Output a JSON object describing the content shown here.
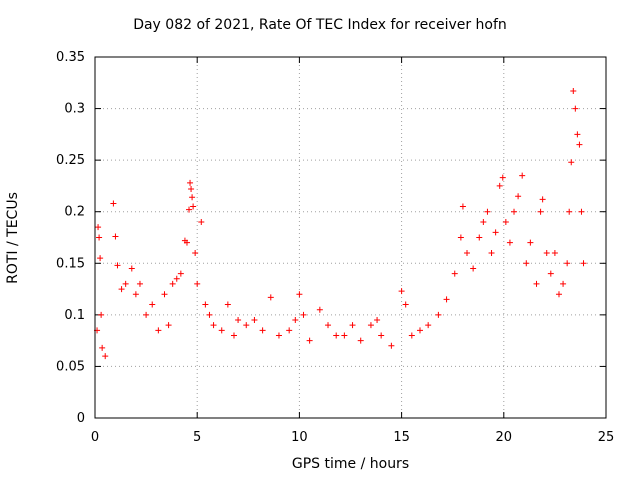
{
  "chart_data": {
    "type": "scatter",
    "title": "Day 082 of 2021, Rate Of TEC Index for receiver hofn",
    "xlabel": "GPS time / hours",
    "ylabel": "ROTI / TECUs",
    "xlim": [
      0,
      25
    ],
    "ylim": [
      0,
      0.35
    ],
    "x_ticks": [
      "0",
      "5",
      "10",
      "15",
      "20",
      "25"
    ],
    "y_ticks": [
      "0",
      "0.05",
      "0.1",
      "0.15",
      "0.2",
      "0.25",
      "0.3",
      "0.35"
    ],
    "grid": true,
    "marker": "+",
    "color": "#ff0000",
    "series": [
      {
        "points": [
          [
            0.1,
            0.085
          ],
          [
            0.15,
            0.185
          ],
          [
            0.2,
            0.175
          ],
          [
            0.25,
            0.155
          ],
          [
            0.3,
            0.1
          ],
          [
            0.35,
            0.068
          ],
          [
            0.5,
            0.06
          ],
          [
            0.9,
            0.208
          ],
          [
            1.0,
            0.176
          ],
          [
            1.1,
            0.148
          ],
          [
            1.3,
            0.125
          ],
          [
            1.5,
            0.13
          ],
          [
            1.8,
            0.145
          ],
          [
            2.0,
            0.12
          ],
          [
            2.2,
            0.13
          ],
          [
            2.5,
            0.1
          ],
          [
            2.8,
            0.11
          ],
          [
            3.1,
            0.085
          ],
          [
            3.4,
            0.12
          ],
          [
            3.6,
            0.09
          ],
          [
            3.8,
            0.13
          ],
          [
            4.0,
            0.135
          ],
          [
            4.2,
            0.14
          ],
          [
            4.4,
            0.172
          ],
          [
            4.5,
            0.17
          ],
          [
            4.6,
            0.202
          ],
          [
            4.65,
            0.228
          ],
          [
            4.7,
            0.222
          ],
          [
            4.75,
            0.214
          ],
          [
            4.8,
            0.205
          ],
          [
            4.9,
            0.16
          ],
          [
            5.0,
            0.13
          ],
          [
            5.2,
            0.19
          ],
          [
            5.4,
            0.11
          ],
          [
            5.6,
            0.1
          ],
          [
            5.8,
            0.09
          ],
          [
            6.2,
            0.085
          ],
          [
            6.5,
            0.11
          ],
          [
            6.8,
            0.08
          ],
          [
            7.0,
            0.095
          ],
          [
            7.4,
            0.09
          ],
          [
            7.8,
            0.095
          ],
          [
            8.2,
            0.085
          ],
          [
            8.6,
            0.117
          ],
          [
            9.0,
            0.08
          ],
          [
            9.5,
            0.085
          ],
          [
            9.8,
            0.095
          ],
          [
            10.0,
            0.12
          ],
          [
            10.2,
            0.1
          ],
          [
            10.5,
            0.075
          ],
          [
            11.0,
            0.105
          ],
          [
            11.4,
            0.09
          ],
          [
            11.8,
            0.08
          ],
          [
            12.2,
            0.08
          ],
          [
            12.6,
            0.09
          ],
          [
            13.0,
            0.075
          ],
          [
            13.5,
            0.09
          ],
          [
            13.8,
            0.095
          ],
          [
            14.0,
            0.08
          ],
          [
            14.5,
            0.07
          ],
          [
            15.0,
            0.123
          ],
          [
            15.2,
            0.11
          ],
          [
            15.5,
            0.08
          ],
          [
            15.9,
            0.085
          ],
          [
            16.3,
            0.09
          ],
          [
            16.8,
            0.1
          ],
          [
            17.2,
            0.115
          ],
          [
            17.6,
            0.14
          ],
          [
            17.9,
            0.175
          ],
          [
            18.0,
            0.205
          ],
          [
            18.2,
            0.16
          ],
          [
            18.5,
            0.145
          ],
          [
            18.8,
            0.175
          ],
          [
            19.0,
            0.19
          ],
          [
            19.2,
            0.2
          ],
          [
            19.4,
            0.16
          ],
          [
            19.6,
            0.18
          ],
          [
            19.8,
            0.225
          ],
          [
            19.95,
            0.233
          ],
          [
            20.1,
            0.19
          ],
          [
            20.3,
            0.17
          ],
          [
            20.5,
            0.2
          ],
          [
            20.7,
            0.215
          ],
          [
            20.9,
            0.235
          ],
          [
            21.1,
            0.15
          ],
          [
            21.3,
            0.17
          ],
          [
            21.6,
            0.13
          ],
          [
            21.8,
            0.2
          ],
          [
            21.9,
            0.212
          ],
          [
            22.1,
            0.16
          ],
          [
            22.3,
            0.14
          ],
          [
            22.5,
            0.16
          ],
          [
            22.7,
            0.12
          ],
          [
            22.9,
            0.13
          ],
          [
            23.1,
            0.15
          ],
          [
            23.2,
            0.2
          ],
          [
            23.3,
            0.248
          ],
          [
            23.4,
            0.317
          ],
          [
            23.5,
            0.3
          ],
          [
            23.6,
            0.275
          ],
          [
            23.7,
            0.265
          ],
          [
            23.8,
            0.2
          ],
          [
            23.9,
            0.15
          ]
        ]
      }
    ]
  }
}
